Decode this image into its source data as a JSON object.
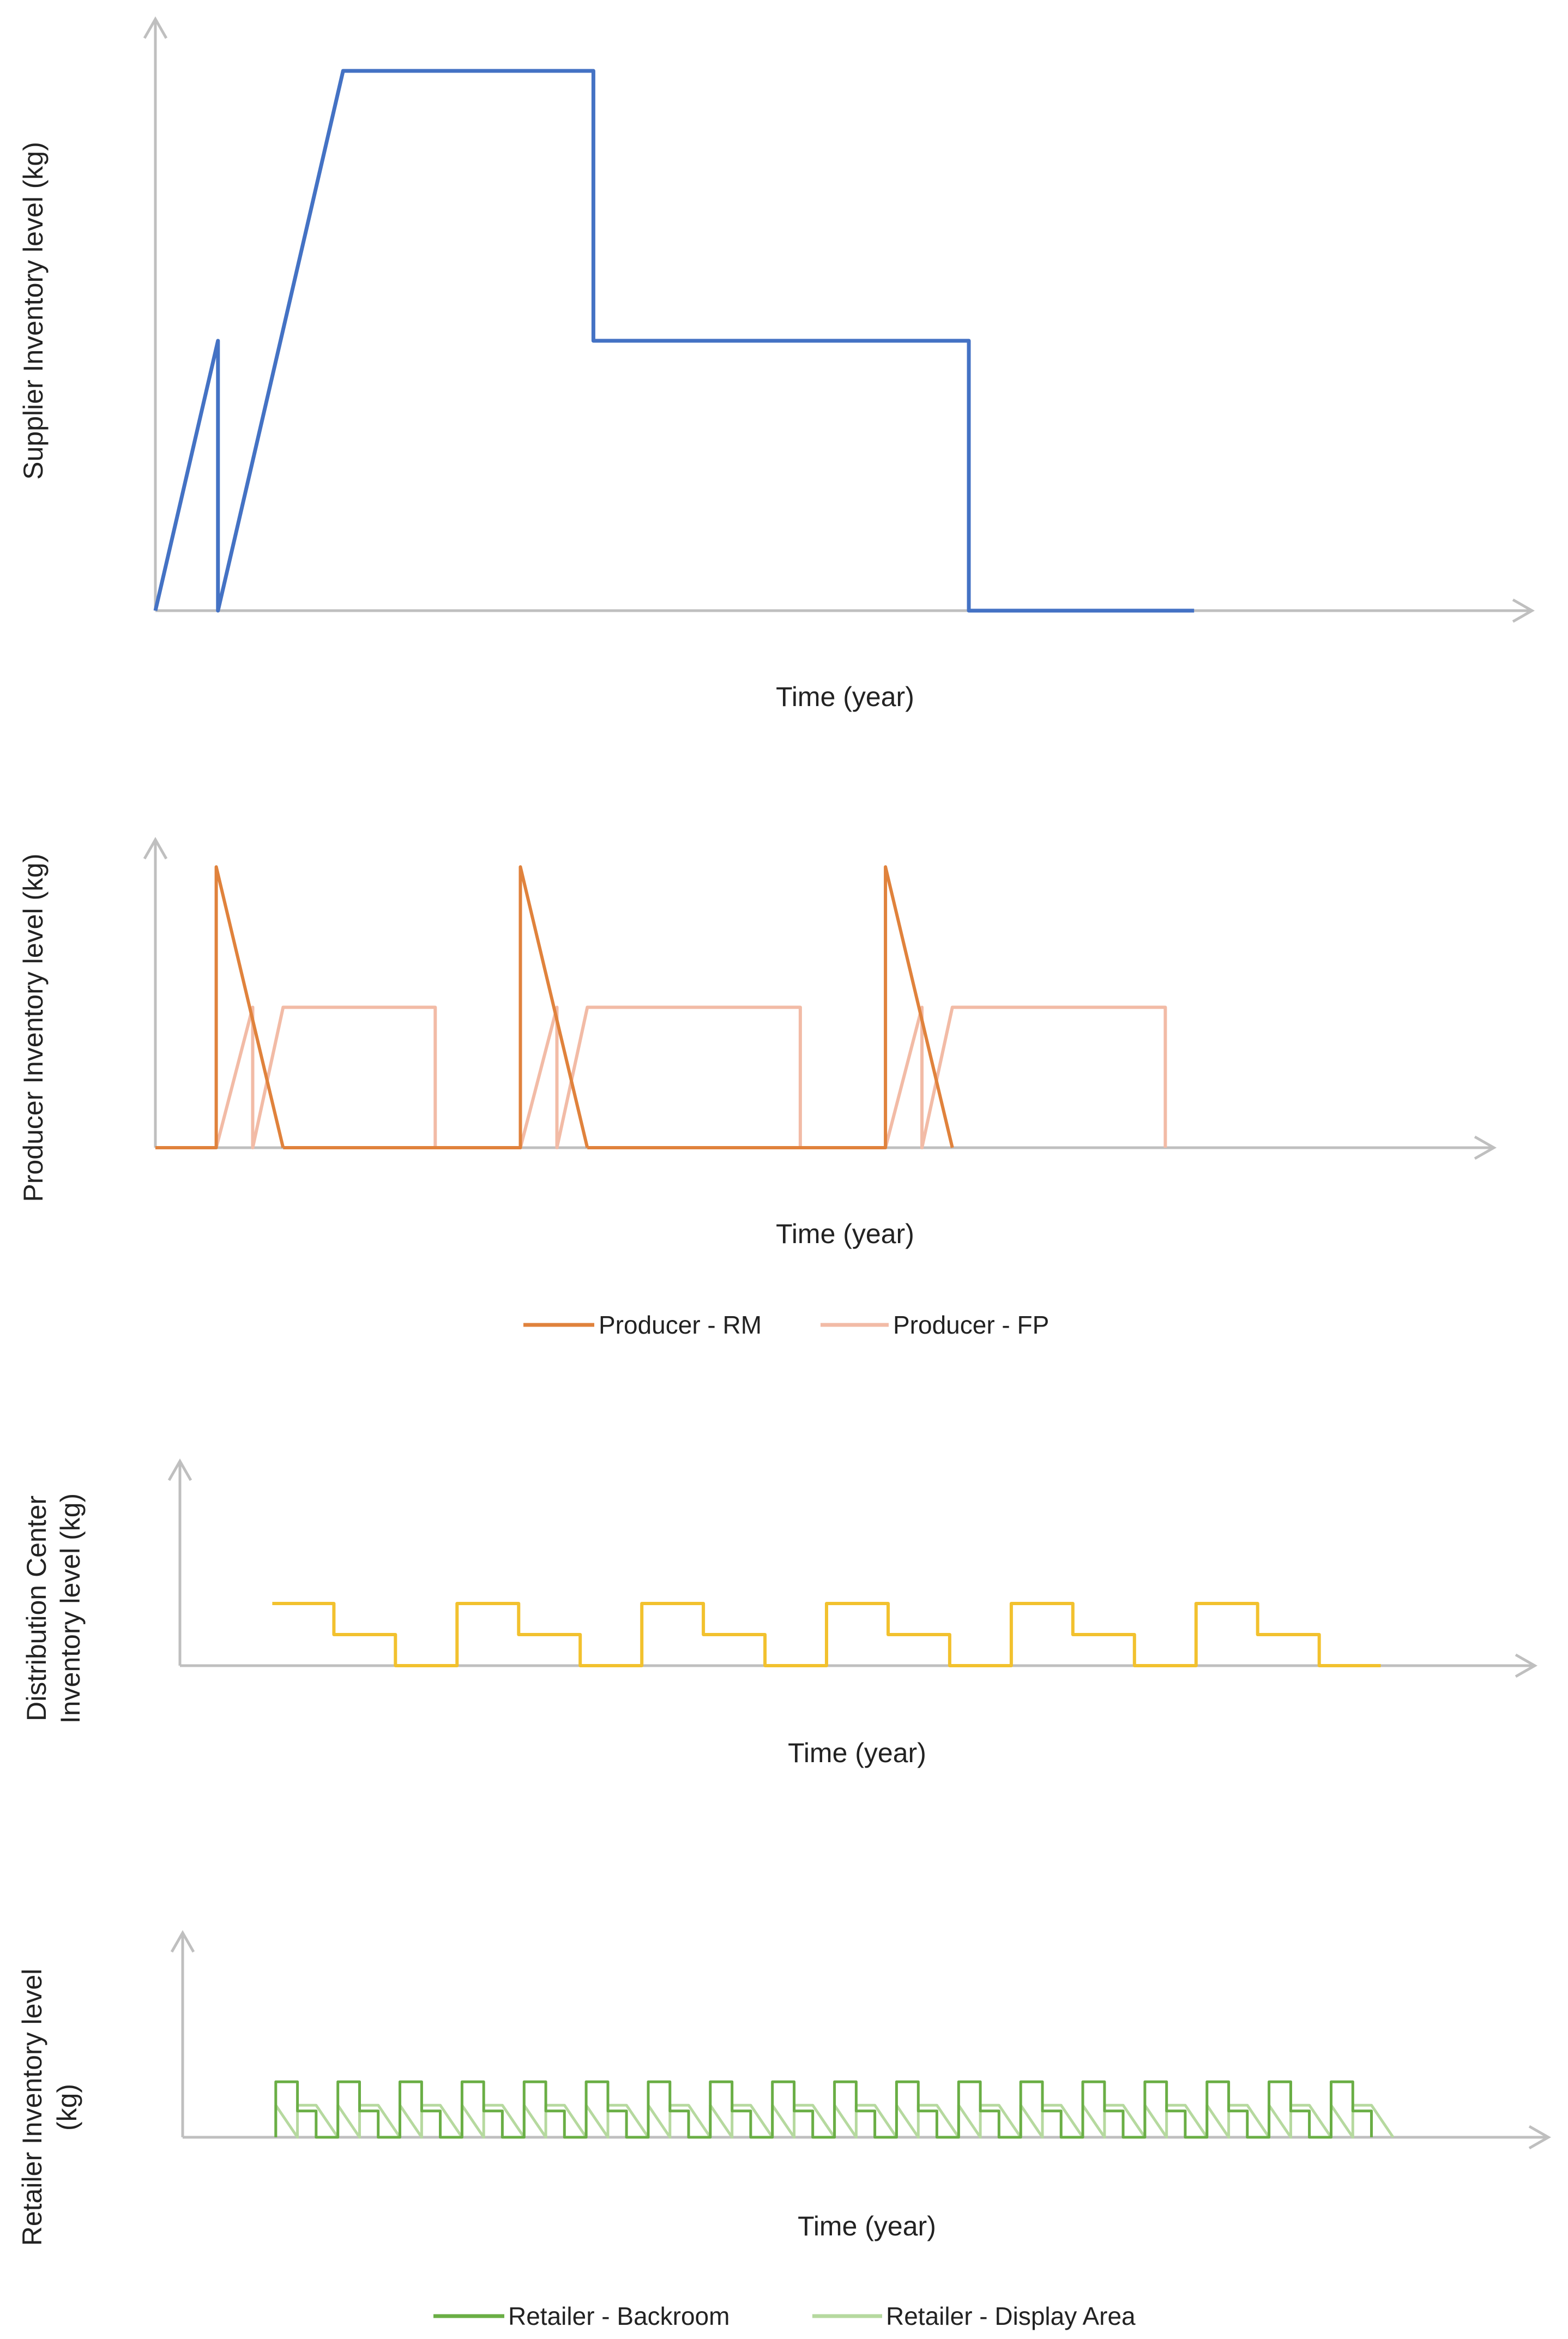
{
  "chart_data": [
    {
      "type": "line",
      "name": "supplier",
      "title": "",
      "xlabel": "Time (year)",
      "ylabel": "Supplier Inventory level (kg)",
      "xlim": [
        0,
        22
      ],
      "ylim": [
        0,
        10
      ],
      "grid": false,
      "series": [
        {
          "name": "Supplier",
          "color": "#4472C4",
          "x": [
            0,
            1,
            1,
            3,
            7,
            7,
            13,
            13,
            16.6
          ],
          "y": [
            0,
            5,
            0,
            10,
            10,
            5,
            5,
            0,
            0
          ]
        }
      ]
    },
    {
      "type": "line",
      "name": "producer",
      "title": "",
      "xlabel": "Time (year)",
      "ylabel": "Producer Inventory level (kg)",
      "xlim": [
        0,
        22
      ],
      "ylim": [
        0,
        10
      ],
      "grid": false,
      "legend": "bottom-center",
      "series": [
        {
          "name": "Producer - RM",
          "color": "#E0823C",
          "x": [
            0,
            1,
            1,
            2.1,
            6,
            6,
            7.1,
            12,
            12,
            13.1
          ],
          "y": [
            0,
            0,
            10,
            0,
            0,
            10,
            0,
            0,
            10,
            0
          ],
          "segments": [
            [
              0,
              3
            ],
            [
              3,
              6
            ],
            [
              6,
              9
            ]
          ]
        },
        {
          "name": "Producer - FP",
          "color": "#F2BBA6",
          "x": [
            0,
            1,
            1.6,
            1.6,
            2.1,
            4.6,
            4.6,
            6,
            6.6,
            6.6,
            7.1,
            10.6,
            10.6,
            12,
            12.6,
            12.6,
            13.1,
            16.6,
            16.6
          ],
          "y": [
            0,
            0,
            5,
            0,
            5,
            5,
            0,
            0,
            5,
            0,
            5,
            5,
            0,
            0,
            5,
            0,
            5,
            5,
            0
          ]
        }
      ]
    },
    {
      "type": "line",
      "name": "distribution",
      "title": "",
      "xlabel": "Time (year)",
      "ylabel": "Distribution Center Inventory level (kg)",
      "ylabel_lines": [
        "Distribution Center",
        "Inventory level (kg)"
      ],
      "xlim": [
        0,
        22
      ],
      "ylim": [
        0,
        10
      ],
      "grid": false,
      "series": [
        {
          "name": "Distribution Center",
          "color": "#F2C12E",
          "cycle_starts": [
            1.5,
            4.5,
            7.5,
            10.5,
            13.5,
            16.5
          ],
          "cycle_steps": [
            [
              0,
              6
            ],
            [
              1,
              6
            ],
            [
              1,
              3
            ],
            [
              2,
              3
            ],
            [
              2,
              0
            ],
            [
              3,
              0
            ]
          ]
        }
      ]
    },
    {
      "type": "line",
      "name": "retailer",
      "title": "",
      "xlabel": "Time (year)",
      "ylabel": "Retailer Inventory level (kg)",
      "ylabel_lines": [
        "Retailer Inventory level",
        "(kg)"
      ],
      "xlim": [
        0,
        22
      ],
      "ylim": [
        0,
        10
      ],
      "grid": false,
      "legend": "bottom-center",
      "series": [
        {
          "name": "Retailer - Backroom",
          "color": "#6AAE45",
          "cycle_starts": [
            1.5,
            2.5,
            3.5,
            4.5,
            5.5,
            6.5,
            7.5,
            8.5,
            9.5,
            10.5,
            11.5,
            12.5,
            13.5,
            14.5,
            15.5,
            16.5,
            17.5,
            18.5
          ],
          "cycle_steps": [
            [
              0,
              0
            ],
            [
              0,
              1.9
            ],
            [
              0.35,
              1.9
            ],
            [
              0.35,
              0.9
            ],
            [
              0.65,
              0.9
            ],
            [
              0.65,
              0
            ]
          ]
        },
        {
          "name": "Retailer - Display Area",
          "color": "#B6D99F",
          "cycle_starts": [
            1.5,
            2.5,
            3.5,
            4.5,
            5.5,
            6.5,
            7.5,
            8.5,
            9.5,
            10.5,
            11.5,
            12.5,
            13.5,
            14.5,
            15.5,
            16.5,
            17.5,
            18.5
          ],
          "cycle_steps": [
            [
              0,
              0
            ],
            [
              0,
              1.1
            ],
            [
              0.35,
              0
            ],
            [
              0.35,
              1.1
            ],
            [
              0.65,
              1.1
            ],
            [
              1.0,
              0
            ]
          ]
        }
      ]
    }
  ]
}
